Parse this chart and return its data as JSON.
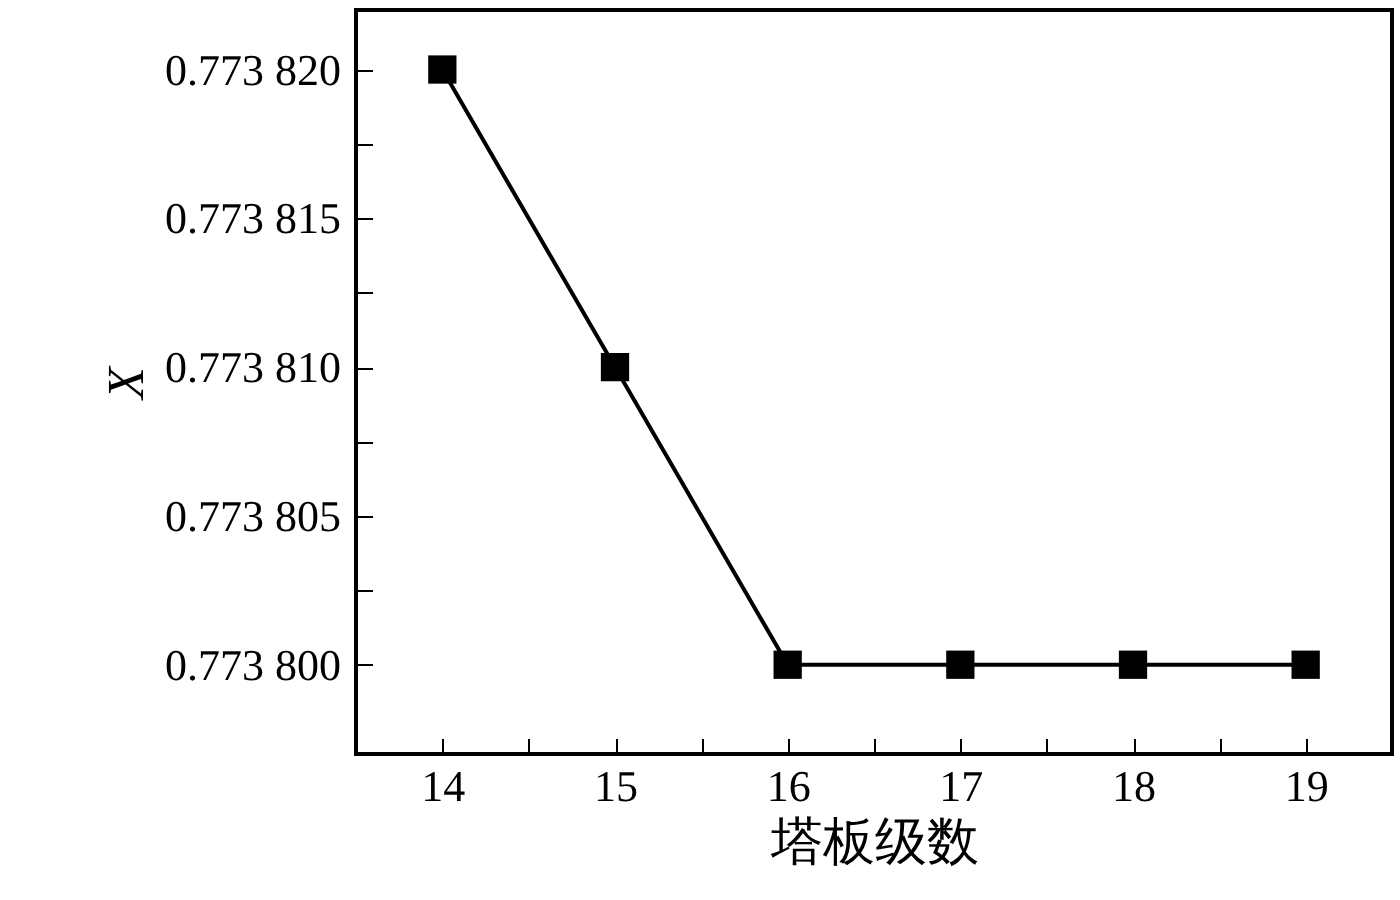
{
  "chart_data": {
    "type": "line",
    "xlabel": "塔板级数",
    "ylabel": "X",
    "x": [
      14,
      15,
      16,
      17,
      18,
      19
    ],
    "series": [
      {
        "color": "#000000",
        "values": [
          0.77382,
          0.77381,
          0.7738,
          0.7738,
          0.7738,
          0.7738
        ]
      }
    ],
    "xlim": [
      13.5,
      19.5
    ],
    "xticks": [
      14,
      {
        "value": 14.5,
        "label": null
      },
      15,
      {
        "value": 15.5,
        "label": null
      },
      16,
      {
        "value": 16.5,
        "label": null
      },
      17,
      {
        "value": 17.5,
        "label": null
      },
      18,
      {
        "value": 18.5,
        "label": null
      },
      19
    ],
    "ylim": [
      0.773797,
      0.773822
    ],
    "yticks": [
      {
        "value": 0.7738,
        "label": "0.773 800"
      },
      {
        "value": 0.7738025,
        "label": null
      },
      {
        "value": 0.773805,
        "label": "0.773 805"
      },
      {
        "value": 0.7738075,
        "label": null
      },
      {
        "value": 0.77381,
        "label": "0.773 810"
      },
      {
        "value": 0.7738125,
        "label": null
      },
      {
        "value": 0.773815,
        "label": "0.773 815"
      },
      {
        "value": 0.7738175,
        "label": null
      },
      {
        "value": 0.77382,
        "label": "0.773 820"
      }
    ],
    "grid": false,
    "marker": "square",
    "line_style": "solid"
  }
}
